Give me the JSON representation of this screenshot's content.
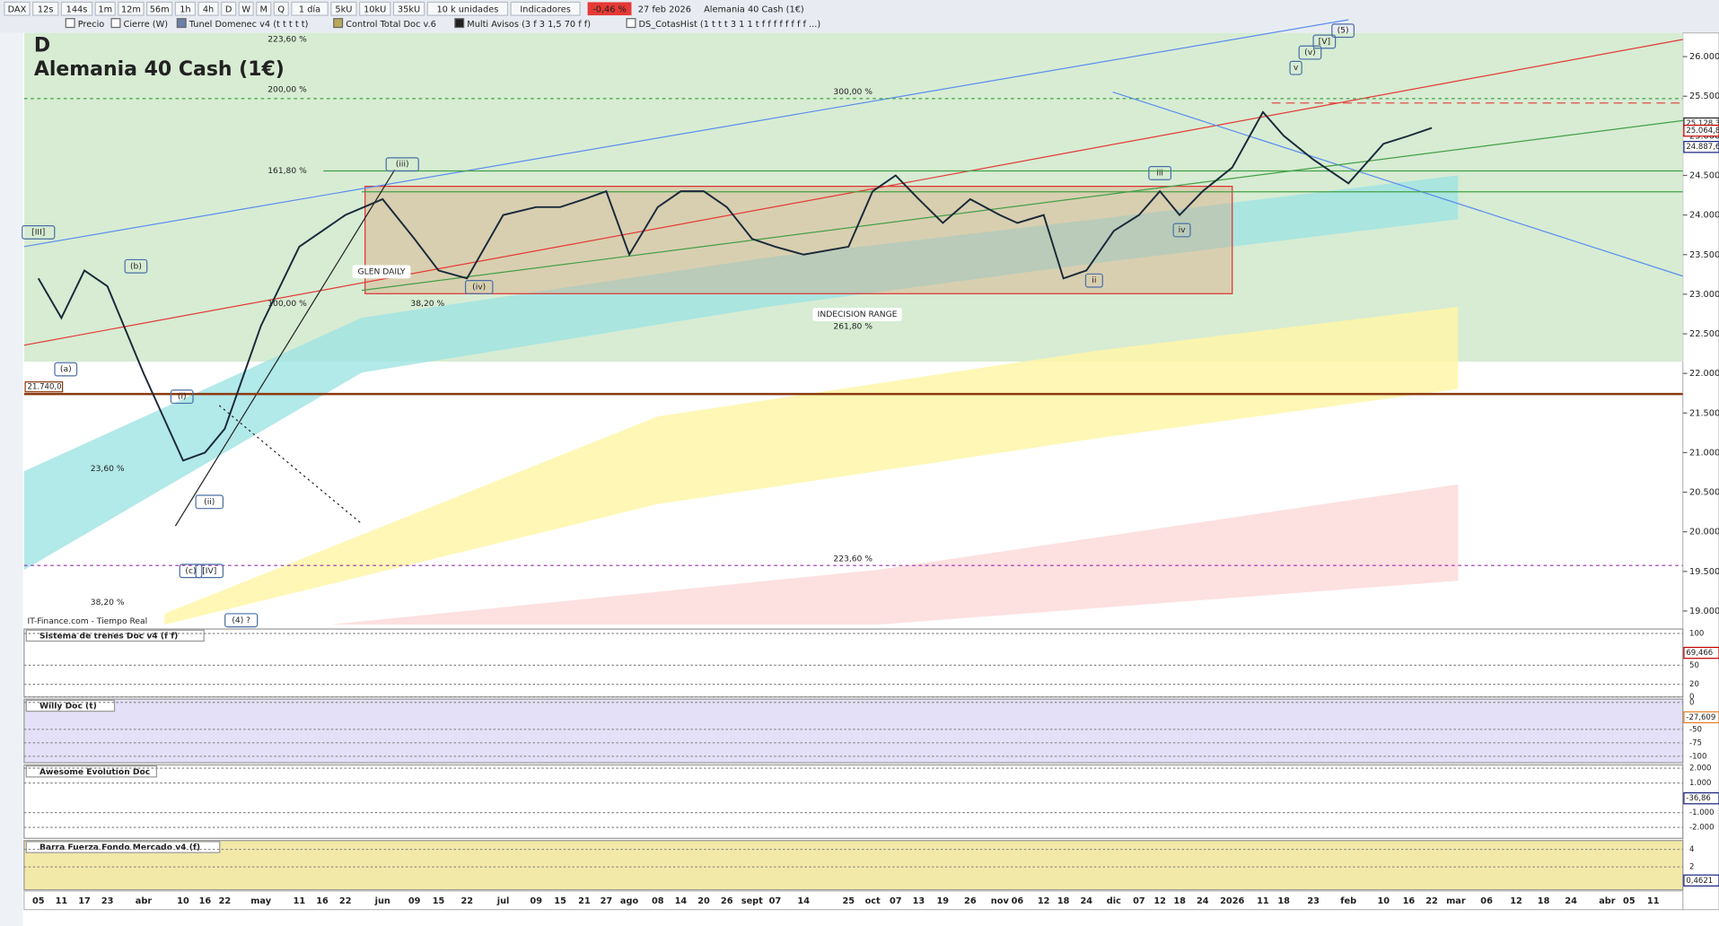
{
  "toolbar": {
    "items": [
      "DAX",
      "12s",
      "144s",
      "1m",
      "12m",
      "56m",
      "1h",
      "4h",
      "D",
      "W",
      "M",
      "Q",
      "1 día",
      "5kU",
      "10kU",
      "35kU",
      "10 k unidades",
      "Indicadores"
    ],
    "change": "-0,46 %",
    "date": "27 feb 2026",
    "instrument": "Alemania 40 Cash (1€)"
  },
  "indicators_bar": [
    "Precio",
    "Cierre (W)",
    "Tunel Domenec v4 (t t t t t)",
    "Control Total Doc v.6",
    "Multi Avisos (3 f 3 1,5 70 f f)",
    "DS_CotasHist (1 t t t 3 1 1 t f f f f f f f f ...)"
  ],
  "chart_data": {
    "type": "line",
    "title": "D",
    "subtitle": "Alemania 40 Cash (1€)",
    "color": "#1a2a3a",
    "categories": [
      "05",
      "11",
      "17",
      "23",
      "abr",
      "10",
      "16",
      "22",
      "may",
      "11",
      "16",
      "22",
      "jun",
      "09",
      "15",
      "22",
      "jul",
      "09",
      "15",
      "21",
      "27",
      "ago",
      "08",
      "14",
      "20",
      "26",
      "sept",
      "07",
      "14",
      "25",
      "oct",
      "07",
      "13",
      "19",
      "26",
      "nov",
      "06",
      "12",
      "18",
      "24",
      "dic",
      "07",
      "12",
      "18",
      "24",
      "2026",
      "11",
      "18",
      "23",
      "feb",
      "10",
      "16",
      "22",
      "mar",
      "06",
      "12",
      "18",
      "24",
      "abr",
      "05",
      "11"
    ],
    "values": [
      23200,
      22700,
      23300,
      23100,
      22000,
      20900,
      21000,
      21300,
      22600,
      23600,
      23800,
      24000,
      24200,
      23700,
      23300,
      23200,
      24000,
      24100,
      24100,
      24200,
      24300,
      23500,
      24100,
      24300,
      24300,
      24100,
      23700,
      23600,
      23500,
      23600,
      24300,
      24500,
      24200,
      23900,
      24200,
      24000,
      23900,
      24000,
      23200,
      23300,
      23800,
      24000,
      24300,
      24000,
      24300,
      24600,
      25300,
      25000,
      24700,
      24400,
      24900,
      25000,
      25100,
      null,
      null,
      null,
      null,
      null,
      null,
      null,
      null
    ],
    "ylim": [
      18800,
      26300
    ],
    "yticks": [
      {
        "value": 19000,
        "label": "19.000"
      },
      {
        "value": 19500,
        "label": "19.500"
      },
      {
        "value": 20000,
        "label": "20.000"
      },
      {
        "value": 20500,
        "label": "20.500"
      },
      {
        "value": 21000,
        "label": "21.000"
      },
      {
        "value": 21500,
        "label": "21.500"
      },
      {
        "value": 22000,
        "label": "22.000"
      },
      {
        "value": 22500,
        "label": "22.500"
      },
      {
        "value": 23000,
        "label": "23.000"
      },
      {
        "value": 23500,
        "label": "23.500"
      },
      {
        "value": 24000,
        "label": "24.000"
      },
      {
        "value": 24500,
        "label": "24.500"
      },
      {
        "value": 25000,
        "label": "25.000"
      },
      {
        "value": 25500,
        "label": "25.500"
      },
      {
        "value": 26000,
        "label": "26.000"
      }
    ],
    "levels": [
      {
        "value": 21740,
        "label": "21.740,0",
        "color": "#8b3a0f"
      }
    ],
    "last_prices": [
      {
        "value": 25128.3,
        "label": "25.128,3",
        "color": "#222"
      },
      {
        "value": 25064.8,
        "label": "25.064,8",
        "color": "#c00000"
      },
      {
        "value": 24887.6,
        "label": "24.887,6",
        "color": "#1a237e"
      }
    ],
    "annotations": [
      "223,60 %",
      "200,00 %",
      "161,80 %",
      "100,00 %",
      "38,20 %",
      "23,60 %",
      "38,20 %",
      "300,00 %",
      "261,80 %",
      "223,60 %",
      "INDECISION RANGE",
      "GLEN DAILY",
      "IT-Finance.com - Tiempo Real",
      "(a)",
      "(b)",
      "(c)",
      "[III]",
      "[IV]",
      "(i)",
      "(ii)",
      "(iii)",
      "(iv)",
      "(4) ?",
      "(5)",
      "[V]",
      "(v)",
      "v",
      "iii",
      "ii",
      "iv"
    ]
  },
  "panels": [
    {
      "title": "Sistema de trenes Doc v4 (f f)",
      "ylim": [
        0,
        107
      ],
      "ticks": [
        100,
        50,
        20,
        0
      ],
      "current": {
        "value": 69.466,
        "label": "69,466",
        "color": "#c00000"
      }
    },
    {
      "title": "Willy Doc (t)",
      "ylim": [
        -112,
        6
      ],
      "ticks": [
        0,
        -50,
        -75,
        -100
      ],
      "current": {
        "value": -27.609,
        "label": "-27,609",
        "color": "#e67e22"
      }
    },
    {
      "title": "Awesome Evolution Doc",
      "ylim": [
        -2740,
        2220
      ],
      "ticks": [
        {
          "value": 2000,
          "label": "2.000"
        },
        {
          "value": 1000,
          "label": "1.000"
        },
        {
          "value": -1000,
          "label": "-1.000"
        },
        {
          "value": -2000,
          "label": "-2.000"
        }
      ],
      "current": {
        "value": -36.86,
        "label": "-36,86",
        "color": "#1a237e"
      }
    },
    {
      "title": "Barra Fuerza Fondo Mercado v4 (f)",
      "ylim": [
        -0.6,
        5
      ],
      "ticks": [
        4,
        2
      ],
      "current": {
        "value": 0.4621,
        "label": "0,4621",
        "color": "#1a237e"
      }
    }
  ]
}
